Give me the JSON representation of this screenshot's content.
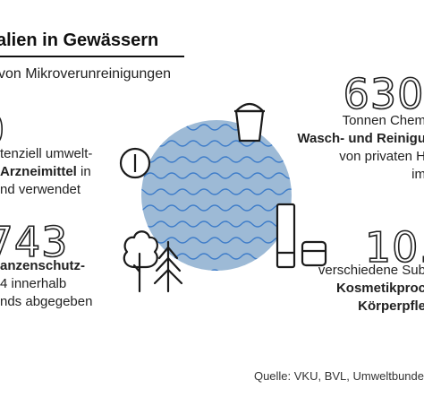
{
  "header": {
    "title": "alien in Gewässern",
    "subtitle": "von Mikroverunreinigungen"
  },
  "stats": {
    "arznei": {
      "value": "0",
      "line1": "tenziell umwelt-",
      "line2_bold": "Arzneimittel",
      "line2_rest": " in",
      "line3": "nd verwendet"
    },
    "pflanz": {
      "value": ".743",
      "line1_bold": "anzenschutz-",
      "line2": "4 innerhalb",
      "line3": "nds abgegeben"
    },
    "wasch": {
      "value": "630.",
      "line1": "Tonnen Chem",
      "line2_bold": "Wasch- und Reinigu",
      "line3": "von privaten H",
      "line4": "im"
    },
    "kosm": {
      "value": "10.",
      "line1": "verschiedene Sub",
      "line2_bold": "Kosmetikproc",
      "line3_bold": "Körperpfle"
    }
  },
  "source": "Quelle: VKU, BVL, Umweltbunde",
  "icons": {
    "circle": "water-circle-icon",
    "medicine": "pill-icon",
    "bucket": "bucket-icon",
    "trees": "trees-icon",
    "cosmetics": "cosmetics-icon"
  },
  "colors": {
    "water_fill": "#9dbad6",
    "wave_line": "#3d7cc9",
    "ink": "#1a1a1a"
  }
}
